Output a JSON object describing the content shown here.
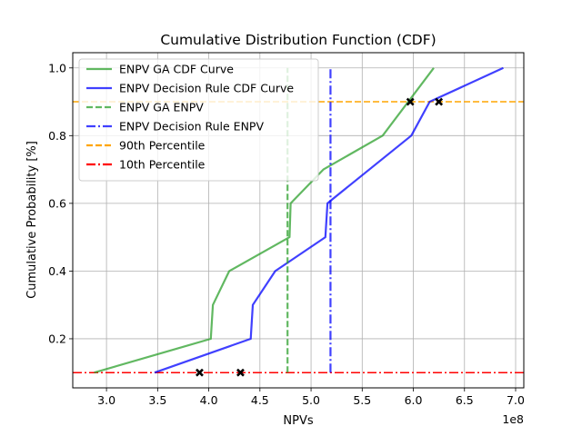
{
  "chart_data": {
    "type": "line",
    "title": "Cumulative Distribution Function (CDF)",
    "xlabel": "NPVs",
    "ylabel": "Cumulative Probability [%]",
    "x_offset_label": "1e8",
    "xlim": [
      2.67,
      7.08
    ],
    "ylim": [
      0.055,
      1.045
    ],
    "x_ticks": [
      3.0,
      3.5,
      4.0,
      4.5,
      5.0,
      5.5,
      6.0,
      6.5,
      7.0
    ],
    "x_tick_labels": [
      "3.0",
      "3.5",
      "4.0",
      "4.5",
      "5.0",
      "5.5",
      "6.0",
      "6.5",
      "7.0"
    ],
    "y_ticks": [
      0.2,
      0.4,
      0.6,
      0.8,
      1.0
    ],
    "y_tick_labels": [
      "0.2",
      "0.4",
      "0.6",
      "0.8",
      "1.0"
    ],
    "grid": true,
    "legend_position": "upper-left",
    "series": [
      {
        "name": "ENPV GA CDF Curve",
        "color": "#2ca02c",
        "style": "solid",
        "x": [
          2.88,
          4.02,
          4.04,
          4.2,
          4.79,
          4.8,
          5.12,
          5.7,
          6.2
        ],
        "y": [
          0.1,
          0.2,
          0.3,
          0.4,
          0.5,
          0.6,
          0.7,
          0.8,
          1.0
        ]
      },
      {
        "name": "ENPV Decision Rule CDF Curve",
        "color": "#0000ff",
        "style": "solid",
        "x": [
          3.47,
          4.41,
          4.43,
          4.65,
          5.14,
          5.16,
          5.2,
          5.98,
          6.16,
          6.88
        ],
        "y": [
          0.1,
          0.2,
          0.3,
          0.4,
          0.5,
          0.6,
          0.61,
          0.8,
          0.9,
          1.0
        ]
      }
    ],
    "vlines": [
      {
        "name": "ENPV GA ENPV",
        "x": 4.77,
        "color": "#2ca02c",
        "style": "dashed"
      },
      {
        "name": "ENPV Decision Rule ENPV",
        "x": 5.19,
        "color": "#0000ff",
        "style": "dashdot"
      }
    ],
    "hlines": [
      {
        "name": "90th Percentile",
        "y": 0.9,
        "color": "#ffa500",
        "style": "dashed"
      },
      {
        "name": "10th Percentile",
        "y": 0.1,
        "color": "#ff0000",
        "style": "dashdot"
      }
    ],
    "markers": {
      "color": "#000000",
      "symbol": "x",
      "points": [
        {
          "x": 3.91,
          "y": 0.1
        },
        {
          "x": 4.31,
          "y": 0.1
        },
        {
          "x": 5.97,
          "y": 0.9
        },
        {
          "x": 6.25,
          "y": 0.9
        }
      ]
    },
    "legend": [
      {
        "label": "ENPV GA CDF Curve",
        "color": "#2ca02c",
        "style": "solid"
      },
      {
        "label": "ENPV Decision Rule CDF Curve",
        "color": "#0000ff",
        "style": "solid"
      },
      {
        "label": "ENPV GA ENPV",
        "color": "#2ca02c",
        "style": "dashed"
      },
      {
        "label": "ENPV Decision Rule ENPV",
        "color": "#0000ff",
        "style": "dashdot"
      },
      {
        "label": "90th Percentile",
        "color": "#ffa500",
        "style": "dashed"
      },
      {
        "label": "10th Percentile",
        "color": "#ff0000",
        "style": "dashdot"
      }
    ]
  }
}
